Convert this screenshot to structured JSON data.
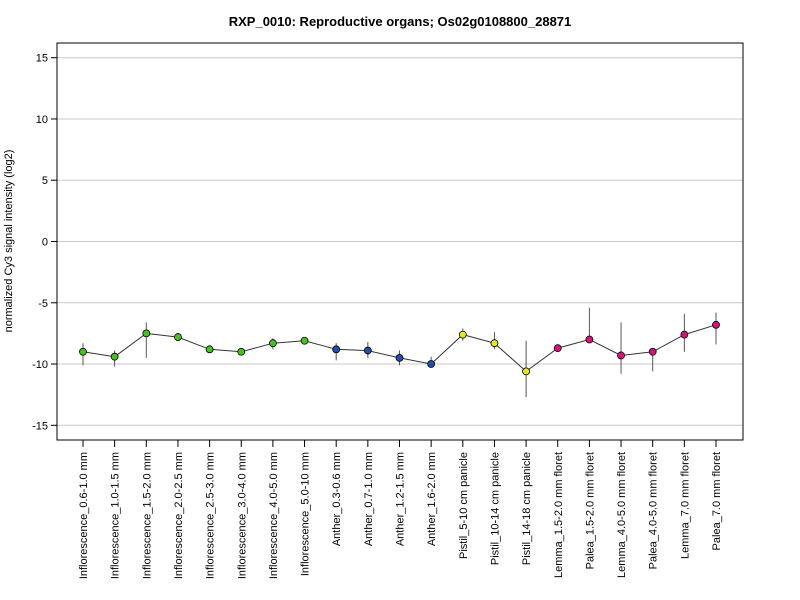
{
  "chart_data": {
    "type": "line",
    "title": "RXP_0010: Reproductive organs; Os02g0108800_28871",
    "xlabel": "",
    "ylabel": "normalized Cy3 signal intensity (log2)",
    "ylim": [
      -16.2,
      16.2
    ],
    "yticks": [
      -15,
      -10,
      -5,
      0,
      5,
      10,
      15
    ],
    "ytick_labels": [
      "-15",
      "-10",
      "-5",
      "0",
      "5",
      "10",
      "15"
    ],
    "grid": true,
    "line_color": "#333333",
    "grid_color": "#c8c8c8",
    "categories": [
      "Inflorescence_0.6-1.0 mm",
      "Inflorescence_1.0-1.5 mm",
      "Inflorescence_1.5-2.0 mm",
      "Inflorescence_2.0-2.5 mm",
      "Inflorescence_2.5-3.0 mm",
      "Inflorescence_3.0-4.0 mm",
      "Inflorescence_4.0-5.0 mm",
      "Inflorescence_5.0-10 mm",
      "Anther_0.3-0.6 mm",
      "Anther_0.7-1.0 mm",
      "Anther_1.2-1.5 mm",
      "Anther_1.6-2.0 mm",
      "Pistil_5-10 cm panicle",
      "Pistil_10-14 cm panicle",
      "Pistil_14-18 cm panicle",
      "Lemma_1.5-2.0 mm floret",
      "Palea_1.5-2.0 mm floret",
      "Lemma_4.0-5.0 mm floret",
      "Palea_4.0-5.0 mm floret",
      "Lemma_7.0 mm floret",
      "Palea_7.0 mm floret"
    ],
    "values": [
      -9.0,
      -9.4,
      -7.5,
      -7.8,
      -8.8,
      -9.0,
      -8.3,
      -8.1,
      -8.8,
      -8.9,
      -9.5,
      -10.0,
      -7.6,
      -8.3,
      -10.6,
      -8.7,
      -8.0,
      -9.3,
      -9.0,
      -7.6,
      -6.8
    ],
    "error_low": [
      -10.1,
      -10.2,
      -9.5,
      -7.9,
      -8.9,
      -9.1,
      -8.8,
      -8.2,
      -9.7,
      -9.5,
      -10.1,
      -10.2,
      -8.1,
      -8.8,
      -12.7,
      -9.0,
      -8.2,
      -10.8,
      -10.6,
      -9.0,
      -8.4
    ],
    "error_high": [
      -8.3,
      -8.9,
      -6.6,
      -7.7,
      -8.6,
      -8.8,
      -7.9,
      -7.9,
      -8.3,
      -8.2,
      -8.9,
      -9.4,
      -7.1,
      -7.4,
      -8.1,
      -8.4,
      -5.4,
      -6.6,
      -8.7,
      -5.9,
      -5.8
    ],
    "point_colors": [
      "#44c31c",
      "#44c31c",
      "#44c31c",
      "#44c31c",
      "#44c31c",
      "#44c31c",
      "#44c31c",
      "#44c31c",
      "#1f4fb0",
      "#1f4fb0",
      "#1f4fb0",
      "#1f4fb0",
      "#e6e62a",
      "#e6e62a",
      "#e6e62a",
      "#d4147c",
      "#d4147c",
      "#d4147c",
      "#d4147c",
      "#d4147c",
      "#d4147c"
    ]
  }
}
